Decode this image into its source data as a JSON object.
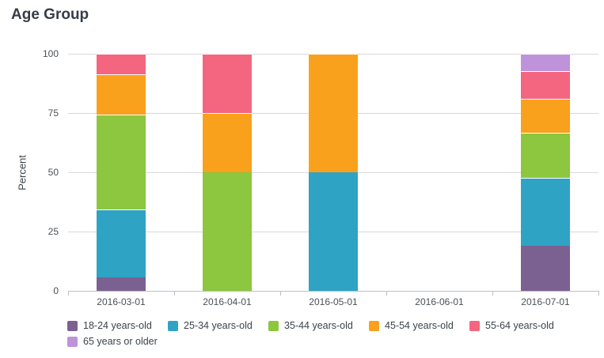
{
  "chart_data": {
    "type": "bar",
    "stacked": true,
    "title": "Age Group",
    "ylabel": "Percent",
    "xlabel": "",
    "ylim": [
      0,
      100
    ],
    "yticks": [
      0,
      25,
      50,
      75,
      100
    ],
    "grid": true,
    "legend_position": "bottom",
    "categories": [
      "2016-03-01",
      "2016-04-01",
      "2016-05-01",
      "2016-06-01",
      "2016-07-01"
    ],
    "series": [
      {
        "name": "18-24 years-old",
        "color": "#7b6191",
        "values": [
          5.7,
          0,
          0,
          0,
          19.0
        ]
      },
      {
        "name": "25-34 years-old",
        "color": "#2fa3c4",
        "values": [
          28.6,
          0,
          50,
          0,
          28.6
        ]
      },
      {
        "name": "35-44 years-old",
        "color": "#8dc63f",
        "values": [
          40.0,
          50,
          0,
          0,
          19.0
        ]
      },
      {
        "name": "45-54 years-old",
        "color": "#f9a11c",
        "values": [
          17.1,
          25,
          50,
          0,
          14.3
        ]
      },
      {
        "name": "55-64 years-old",
        "color": "#f4667f",
        "values": [
          8.6,
          25,
          0,
          0,
          11.9
        ]
      },
      {
        "name": "65 years or older",
        "color": "#bf93da",
        "values": [
          0,
          0,
          0,
          0,
          7.1
        ]
      }
    ],
    "colors": {
      "gridline": "#d9d9d9",
      "axis": "#b6c1cb",
      "title_text": "#363d47",
      "tick_text": "#4b5157"
    }
  }
}
